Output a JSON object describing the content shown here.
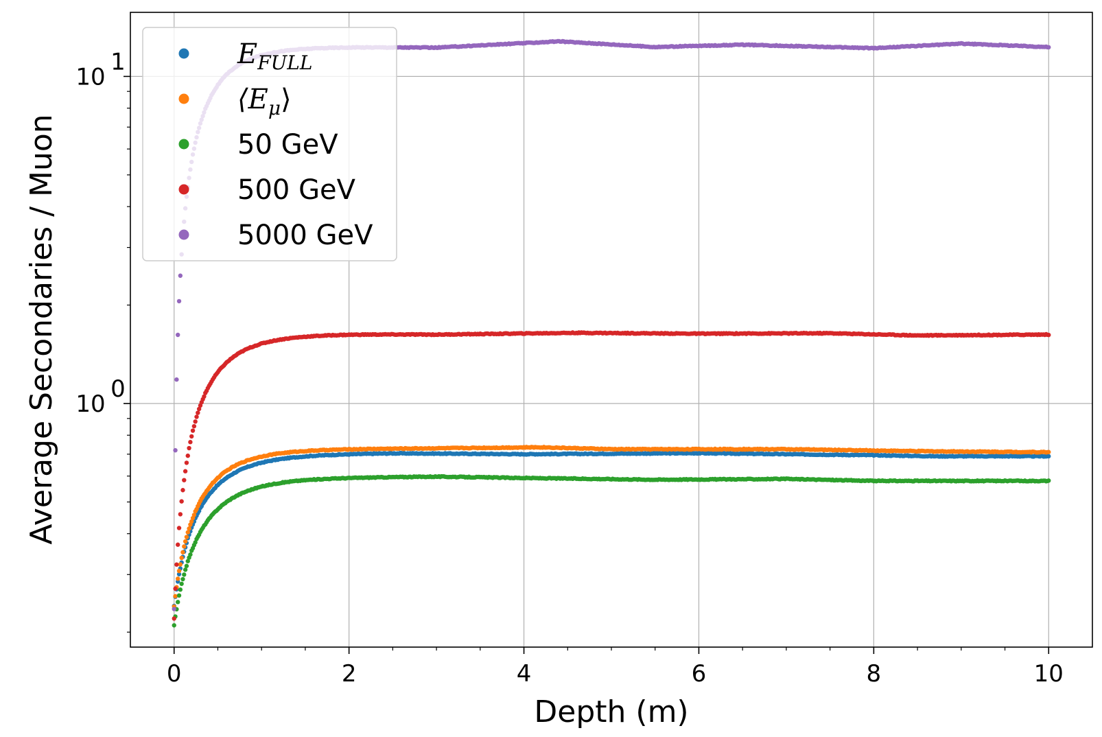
{
  "chart_data": {
    "type": "scatter",
    "xlabel": "Depth (m)",
    "ylabel": "Average Secondaries / Muon",
    "xlim": [
      -0.5,
      10.5
    ],
    "ylim": [
      0.18,
      15.7
    ],
    "yscale": "log",
    "grid": true,
    "legend_placement": "top-left",
    "x_ticks": [
      {
        "value": 0,
        "label": "0"
      },
      {
        "value": 2,
        "label": "2"
      },
      {
        "value": 4,
        "label": "4"
      },
      {
        "value": 6,
        "label": "6"
      },
      {
        "value": 8,
        "label": "8"
      },
      {
        "value": 10,
        "label": "10"
      }
    ],
    "y_ticks": [
      {
        "value": 1,
        "base": "10",
        "exp": "0"
      },
      {
        "value": 10,
        "base": "10",
        "exp": "1"
      }
    ],
    "series": [
      {
        "name": "E",
        "name_sub": "FULL",
        "color": "#1f77b4",
        "y0": 0.24,
        "plateau": 0.7,
        "tau": 0.4,
        "wobble": [
          [
            0,
            0.69
          ],
          [
            1.5,
            0.7
          ],
          [
            2.5,
            0.705
          ],
          [
            4,
            0.7
          ],
          [
            6,
            0.705
          ],
          [
            8,
            0.695
          ],
          [
            8.7,
            0.69
          ],
          [
            10,
            0.69
          ]
        ]
      },
      {
        "name": "⟨E",
        "name_sub": "μ",
        "name_suffix": "⟩",
        "color": "#ff7f0e",
        "y0": 0.24,
        "plateau": 0.73,
        "tau": 0.38,
        "wobble": [
          [
            0,
            0.72
          ],
          [
            1.5,
            0.725
          ],
          [
            3,
            0.73
          ],
          [
            4.2,
            0.735
          ],
          [
            5,
            0.725
          ],
          [
            7,
            0.725
          ],
          [
            8.5,
            0.715
          ],
          [
            10,
            0.71
          ]
        ]
      },
      {
        "name": "50 GeV",
        "color": "#2ca02c",
        "y0": 0.21,
        "plateau": 0.59,
        "tau": 0.42,
        "wobble": [
          [
            0,
            0.59
          ],
          [
            2,
            0.595
          ],
          [
            3,
            0.598
          ],
          [
            4,
            0.592
          ],
          [
            5.5,
            0.585
          ],
          [
            7,
            0.588
          ],
          [
            8,
            0.58
          ],
          [
            10,
            0.58
          ]
        ]
      },
      {
        "name": "500 GeV",
        "color": "#d62728",
        "y0": 0.22,
        "plateau": 1.62,
        "tau": 0.38,
        "wobble": [
          [
            0,
            1.62
          ],
          [
            2,
            1.63
          ],
          [
            3,
            1.625
          ],
          [
            4.6,
            1.645
          ],
          [
            6,
            1.635
          ],
          [
            7.5,
            1.64
          ],
          [
            8.5,
            1.615
          ],
          [
            10,
            1.625
          ]
        ]
      },
      {
        "name": "5000 GeV",
        "color": "#9467bd",
        "y0": 0.235,
        "plateau": 12.3,
        "tau": 0.35,
        "wobble": [
          [
            0,
            12.3
          ],
          [
            2,
            12.3
          ],
          [
            3,
            12.25
          ],
          [
            4.4,
            12.8
          ],
          [
            5.5,
            12.3
          ],
          [
            6.5,
            12.5
          ],
          [
            8,
            12.2
          ],
          [
            9,
            12.6
          ],
          [
            10,
            12.3
          ]
        ]
      }
    ]
  }
}
